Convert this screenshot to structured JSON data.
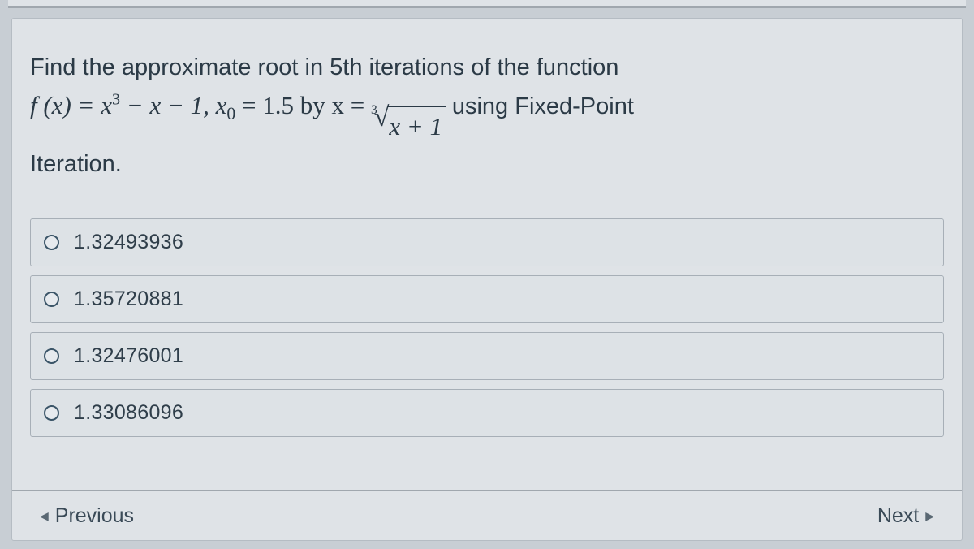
{
  "question": {
    "intro": "Find the approximate root in 5th iterations of the function",
    "func_lhs": "f (x) = x",
    "func_exp": "3",
    "func_mid": " − x − 1, x",
    "x0_sub": "0",
    "x0_eq": " = 1.5 by x = ",
    "root_index": "3",
    "radicand": "x + 1",
    "tail": " using Fixed-Point",
    "last_line": "Iteration."
  },
  "options": [
    {
      "label": "1.32493936"
    },
    {
      "label": "1.35720881"
    },
    {
      "label": "1.32476001"
    },
    {
      "label": "1.33086096"
    }
  ],
  "nav": {
    "prev": "Previous",
    "next": "Next"
  },
  "style": {
    "background_color": "#c8ced4",
    "card_background": "#dfe3e7",
    "text_color": "#2b3a46",
    "border_color": "#a7afb7",
    "radio_border": "#3b5568",
    "question_fontsize": 29,
    "option_fontsize": 25
  }
}
